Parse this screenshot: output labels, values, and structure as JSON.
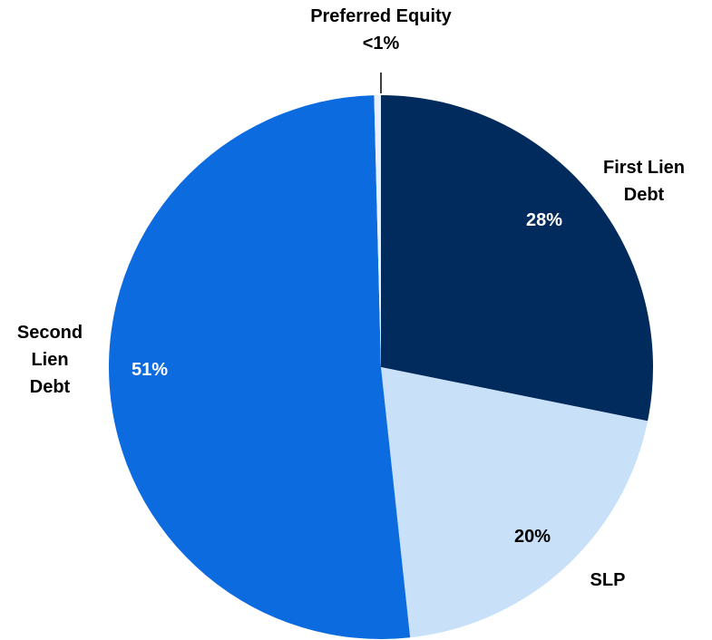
{
  "chart_data": {
    "type": "pie",
    "categories": [
      "First Lien Debt",
      "SLP",
      "Second Lien Debt",
      "Preferred Equity"
    ],
    "values": [
      28,
      20,
      51,
      0.4
    ],
    "value_labels": [
      "28%",
      "20%",
      "51%",
      "<1%"
    ],
    "colors": [
      "#002b5c",
      "#c8e0f8",
      "#0d6be0",
      "#e8f1fb"
    ]
  }
}
